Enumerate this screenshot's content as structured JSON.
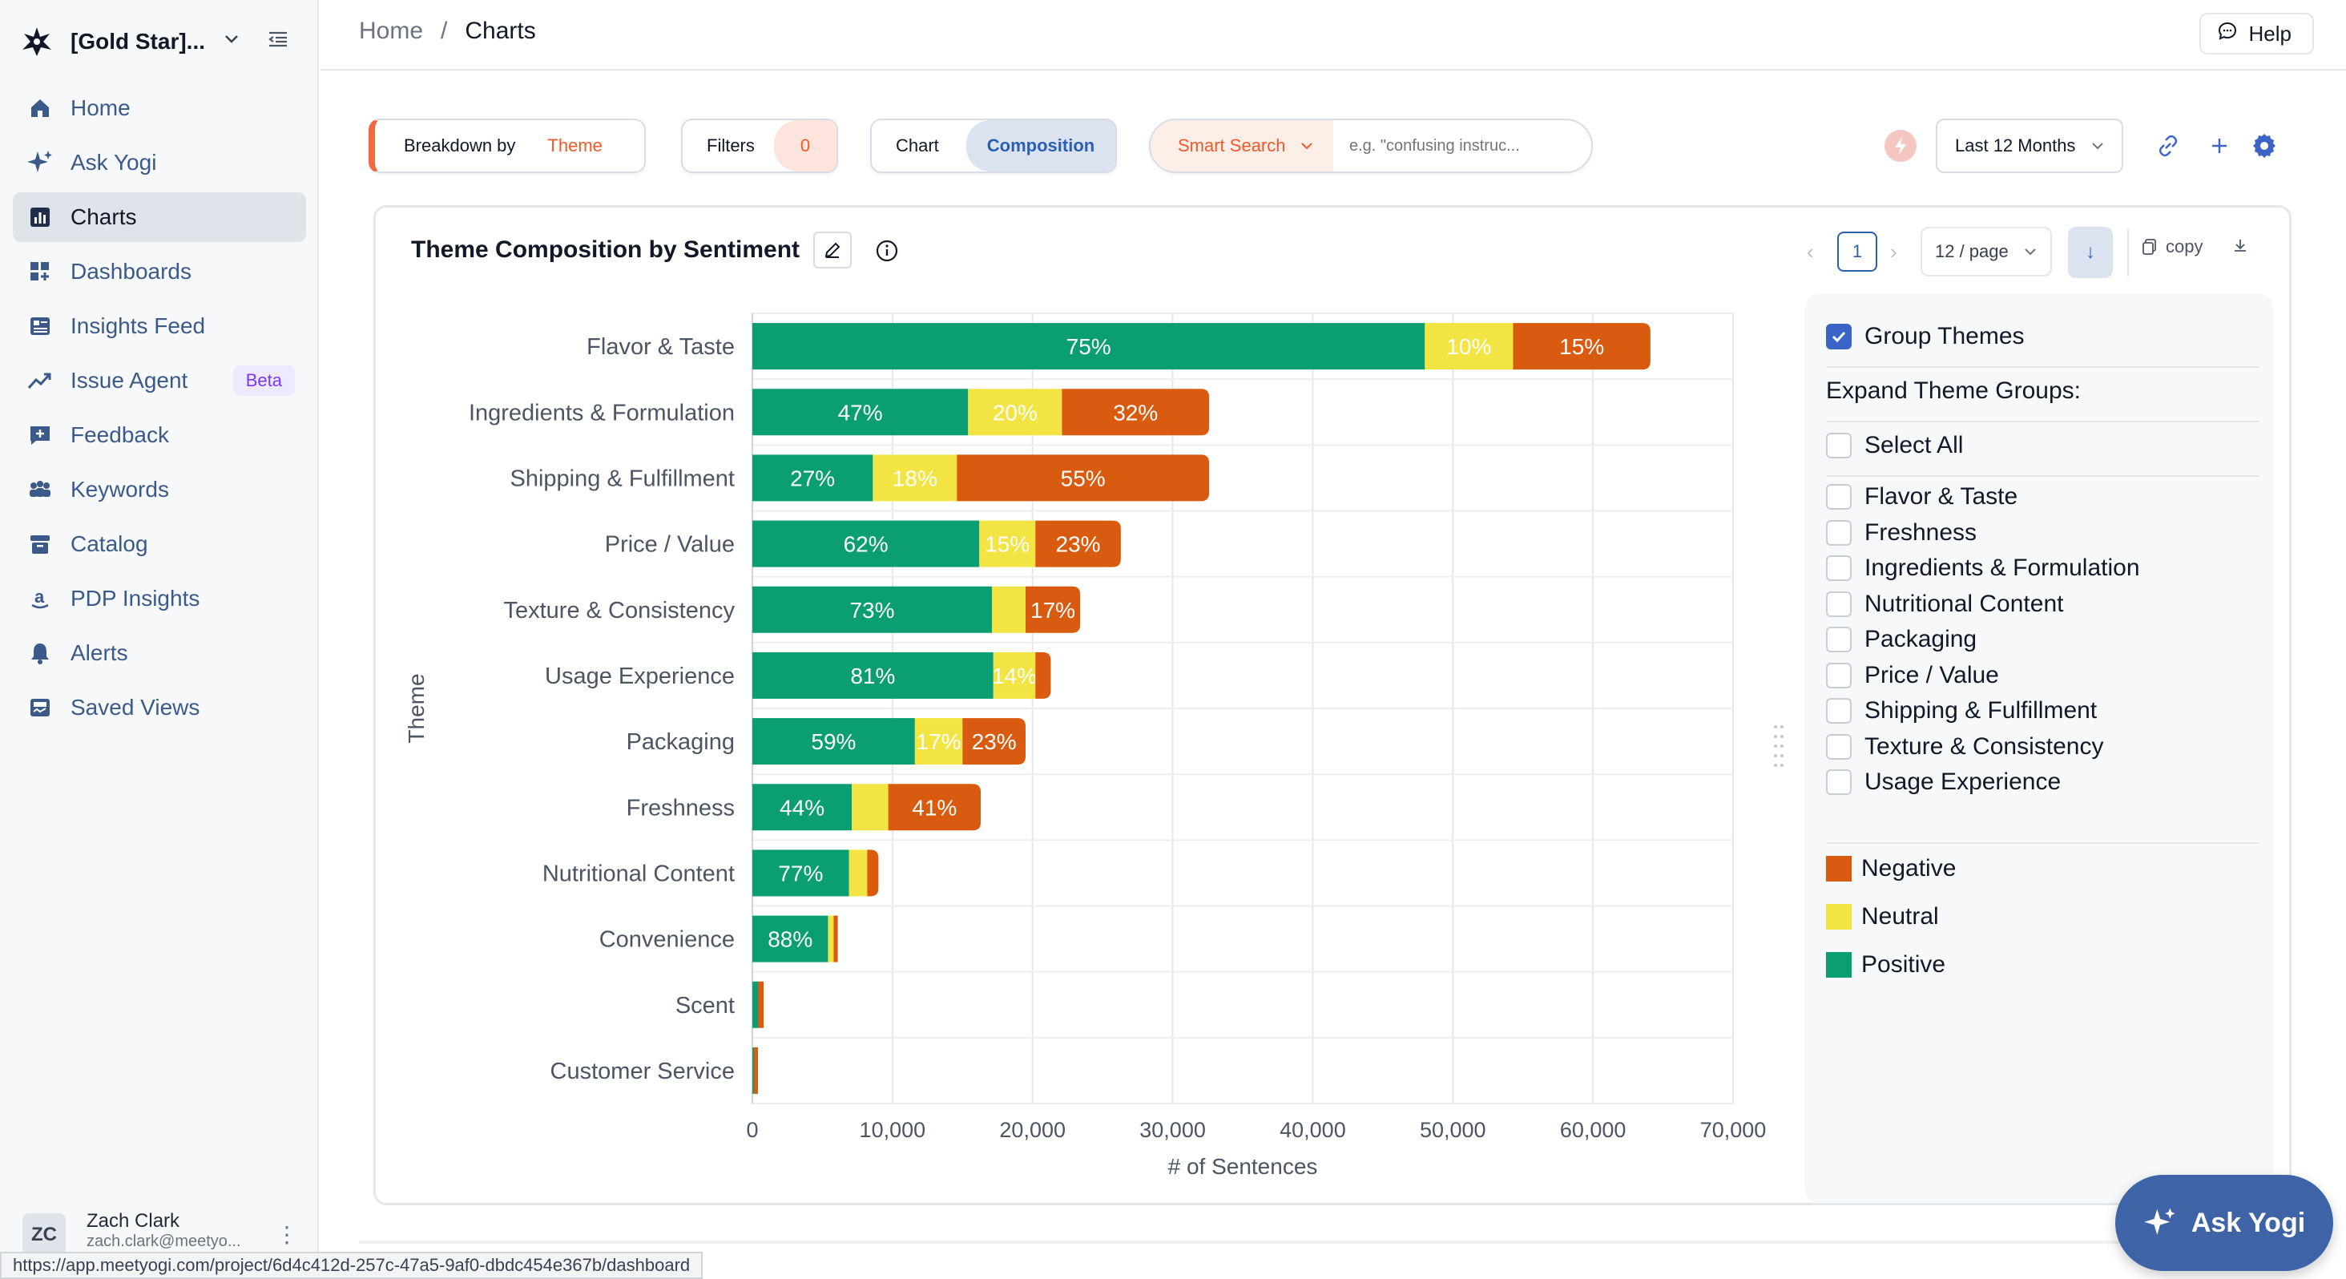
{
  "sidebar": {
    "workspace": "[Gold Star]...",
    "items": [
      {
        "label": "Home",
        "icon": "home-icon"
      },
      {
        "label": "Ask Yogi",
        "icon": "sparkle-icon"
      },
      {
        "label": "Charts",
        "icon": "bar-chart-icon",
        "active": true
      },
      {
        "label": "Dashboards",
        "icon": "dashboard-icon"
      },
      {
        "label": "Insights Feed",
        "icon": "insights-icon"
      },
      {
        "label": "Issue Agent",
        "icon": "trend-icon",
        "badge": "Beta"
      },
      {
        "label": "Feedback",
        "icon": "feedback-icon"
      },
      {
        "label": "Keywords",
        "icon": "keywords-icon"
      },
      {
        "label": "Catalog",
        "icon": "catalog-icon"
      },
      {
        "label": "PDP Insights",
        "icon": "amazon-icon"
      },
      {
        "label": "Alerts",
        "icon": "bell-icon"
      },
      {
        "label": "Saved Views",
        "icon": "saved-icon"
      }
    ],
    "user": {
      "initials": "ZC",
      "name": "Zach Clark",
      "email": "zach.clark@meetyo..."
    }
  },
  "header": {
    "breadcrumb_home": "Home",
    "breadcrumb_sep": "/",
    "breadcrumb_current": "Charts",
    "help_label": "Help"
  },
  "toolbar": {
    "breakdown_label": "Breakdown by",
    "breakdown_value": "Theme",
    "filters_label": "Filters",
    "filters_count": "0",
    "view_chart": "Chart",
    "view_composition": "Composition",
    "smart_search_label": "Smart Search",
    "search_placeholder": "e.g. \"confusing instruc...",
    "date_range": "Last 12 Months"
  },
  "card": {
    "title": "Theme Composition by Sentiment",
    "page": "1",
    "per_page": "12 / page",
    "copy_label": "copy"
  },
  "chart_data": {
    "type": "bar",
    "orientation": "horizontal",
    "stacked": true,
    "title": "Theme Composition by Sentiment",
    "xlabel": "# of Sentences",
    "ylabel": "Theme",
    "xlim": [
      0,
      70000
    ],
    "xticks": [
      0,
      10000,
      20000,
      30000,
      40000,
      50000,
      60000,
      70000
    ],
    "xtick_labels": [
      "0",
      "10,000",
      "20,000",
      "30,000",
      "40,000",
      "50,000",
      "60,000",
      "70,000"
    ],
    "grid": true,
    "categories": [
      "Flavor & Taste",
      "Ingredients & Formulation",
      "Shipping & Fulfillment",
      "Price / Value",
      "Texture & Consistency",
      "Usage Experience",
      "Packaging",
      "Freshness",
      "Nutritional Content",
      "Convenience",
      "Scent",
      "Customer Service"
    ],
    "series": [
      {
        "name": "Positive",
        "color": "#0a9e72",
        "values": [
          48000,
          15400,
          8600,
          16200,
          17100,
          17200,
          11600,
          7100,
          6900,
          5400,
          400,
          100
        ],
        "labels": [
          "75%",
          "47%",
          "27%",
          "62%",
          "73%",
          "81%",
          "59%",
          "44%",
          "77%",
          "88%",
          "",
          ""
        ]
      },
      {
        "name": "Neutral",
        "color": "#f1e443",
        "values": [
          6300,
          6700,
          6000,
          4000,
          2400,
          3000,
          3400,
          2600,
          1300,
          400,
          0,
          0
        ],
        "labels": [
          "10%",
          "20%",
          "18%",
          "15%",
          "",
          "14%",
          "17%",
          "",
          "",
          "",
          "",
          ""
        ]
      },
      {
        "name": "Negative",
        "color": "#d95b0f",
        "values": [
          9800,
          10500,
          18000,
          6100,
          3900,
          1100,
          4500,
          6600,
          800,
          300,
          400,
          300
        ],
        "labels": [
          "15%",
          "32%",
          "55%",
          "23%",
          "17%",
          "",
          "23%",
          "41%",
          "",
          "",
          "",
          ""
        ]
      }
    ],
    "legend": [
      "Negative",
      "Neutral",
      "Positive"
    ],
    "legend_placement": "right"
  },
  "panel": {
    "group_themes_label": "Group Themes",
    "expand_label": "Expand Theme Groups:",
    "select_all_label": "Select All",
    "groups": [
      "Flavor & Taste",
      "Freshness",
      "Ingredients & Formulation",
      "Nutritional Content",
      "Packaging",
      "Price / Value",
      "Shipping & Fulfillment",
      "Texture & Consistency",
      "Usage Experience"
    ],
    "legend": [
      {
        "label": "Negative",
        "color": "#d95b0f"
      },
      {
        "label": "Neutral",
        "color": "#f1e443"
      },
      {
        "label": "Positive",
        "color": "#0a9e72"
      }
    ]
  },
  "fab": {
    "label": "Ask Yogi"
  },
  "status_url": "https://app.meetyogi.com/project/6d4c412d-257c-47a5-9af0-dbdc454e367b/dashboard"
}
